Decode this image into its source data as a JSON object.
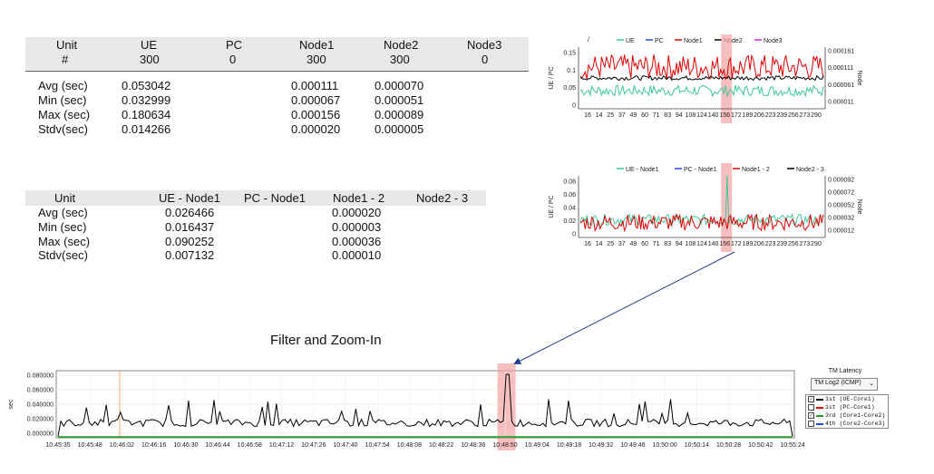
{
  "table1": {
    "headers": [
      "Unit",
      "UE",
      "PC",
      "Node1",
      "Node2",
      "Node3"
    ],
    "subheaders": [
      "#",
      "300",
      "0",
      "300",
      "300",
      "0"
    ],
    "rows": [
      {
        "label": "Avg (sec)",
        "ue": "0.053042",
        "node1": "0.000111",
        "node2": "0.000070"
      },
      {
        "label": "Min (sec)",
        "ue": "0.032999",
        "node1": "0.000067",
        "node2": "0.000051"
      },
      {
        "label": "Max (sec)",
        "ue": "0.180634",
        "node1": "0.000156",
        "node2": "0.000089"
      },
      {
        "label": "Stdv(sec)",
        "ue": "0.014266",
        "node1": "0.000020",
        "node2": "0.000005"
      }
    ]
  },
  "table2": {
    "headers": [
      "Unit",
      "UE - Node1",
      "PC - Node1",
      "Node1 - 2",
      "Node2 - 3"
    ],
    "rows": [
      {
        "label": "Avg (sec)",
        "ue_node1": "0.026466",
        "node1_2": "0.000020"
      },
      {
        "label": "Min (sec)",
        "ue_node1": "0.016437",
        "node1_2": "0.000003"
      },
      {
        "label": "Max (sec)",
        "ue_node1": "0.090252",
        "node1_2": "0.000036"
      },
      {
        "label": "Stdv(sec)",
        "ue_node1": "0.007132",
        "node1_2": "0.000010"
      }
    ]
  },
  "caption": "Filter and Zoom-In",
  "colors": {
    "ue": "#3cc99a",
    "pc": "#1f4fd6",
    "node1": "#e00000",
    "node2": "#000000",
    "node3": "#d12bd1",
    "highlight": "#f4a3a3",
    "arrow": "#1f3f8f",
    "series_ue_core": "#000000",
    "series_core1_core2": "#2e9a2e"
  },
  "chart_data": [
    {
      "type": "line",
      "legend": [
        "UE",
        "PC",
        "Node1",
        "Node2",
        "Node3"
      ],
      "legend_prefix": "/",
      "ylabel": "UE / PC",
      "y2label": "Node",
      "left_ticks": [
        "0.15",
        "0.1",
        "0.05",
        "0"
      ],
      "ylim": [
        0,
        0.17
      ],
      "right_ticks": [
        "0.000161",
        "0.000111",
        "0.000061",
        "0.000011"
      ],
      "x_ticks": [
        "16",
        "14",
        "25",
        "37",
        "49",
        "60",
        "71",
        "83",
        "94",
        "108",
        "124",
        "140",
        "156",
        "172",
        "189",
        "206",
        "223",
        "239",
        "256",
        "273",
        "290"
      ],
      "series": [
        {
          "name": "UE",
          "level": 0.05,
          "amp": 0.015
        },
        {
          "name": "Node1",
          "level": 0.115,
          "amp": 0.035
        },
        {
          "name": "Node2",
          "level": 0.085,
          "amp": 0.006
        }
      ],
      "highlight_x_fraction": 0.6
    },
    {
      "type": "line",
      "legend": [
        "UE - Node1",
        "PC - Node1",
        "Node1 - 2",
        "Node2 - 3"
      ],
      "ylabel": "UE / PC",
      "y2label": "Node",
      "left_ticks": [
        "0.08",
        "0.06",
        "0.04",
        "0.02",
        "0"
      ],
      "ylim": [
        0,
        0.09
      ],
      "right_ticks": [
        "0.000092",
        "0.000072",
        "0.000052",
        "0.000032",
        "0.000012"
      ],
      "x_ticks": [
        "16",
        "14",
        "25",
        "37",
        "49",
        "60",
        "71",
        "83",
        "94",
        "108",
        "124",
        "140",
        "156",
        "172",
        "189",
        "206",
        "223",
        "239",
        "256",
        "273",
        "290"
      ],
      "series": [
        {
          "name": "UE - Node1",
          "level": 0.026,
          "amp": 0.008,
          "spike": 0.09
        },
        {
          "name": "Node1 - 2",
          "level": 0.022,
          "amp": 0.012
        }
      ],
      "highlight_x_fraction": 0.6
    },
    {
      "type": "line",
      "ylabel": "sec",
      "y_ticks": [
        "0.080000",
        "0.060000",
        "0.040000",
        "0.020000",
        "0.000000"
      ],
      "ylim": [
        0,
        0.09
      ],
      "x_ticks": [
        "10:45:35",
        "10:45:48",
        "10:46:02",
        "10:46:16",
        "10:46:30",
        "10:46:44",
        "10:46:58",
        "10:47:12",
        "10:47:26",
        "10:47:40",
        "10:47:54",
        "10:48:08",
        "10:48:22",
        "10:48:36",
        "10:48:50",
        "10:49:04",
        "10:49:18",
        "10:49:32",
        "10:49:46",
        "10:50:00",
        "10:50:14",
        "10:50:28",
        "10:50:42",
        "10:55:24"
      ],
      "series": [
        {
          "name": "1st (UE-Core1)",
          "level": 0.02,
          "amp": 0.005,
          "spike": 0.085
        },
        {
          "name": "3rd (Core1-Core2)",
          "level": 0.0008,
          "amp": 0.0
        }
      ],
      "highlight_x_fraction": 0.61
    }
  ],
  "panel": {
    "title": "TM Latency",
    "select_value": "TM Log2 (ICMP)",
    "items": [
      {
        "label": "1st  (UE-Core1)",
        "checked": true,
        "color": "#000000"
      },
      {
        "label": "1st  (PC-Core1)",
        "checked": false,
        "color": "#e00000"
      },
      {
        "label": "3rd  (Core1-Core2)",
        "checked": true,
        "color": "#2e9a2e"
      },
      {
        "label": "4th  (Core2-Core3)",
        "checked": false,
        "color": "#1f4fd6"
      }
    ]
  }
}
